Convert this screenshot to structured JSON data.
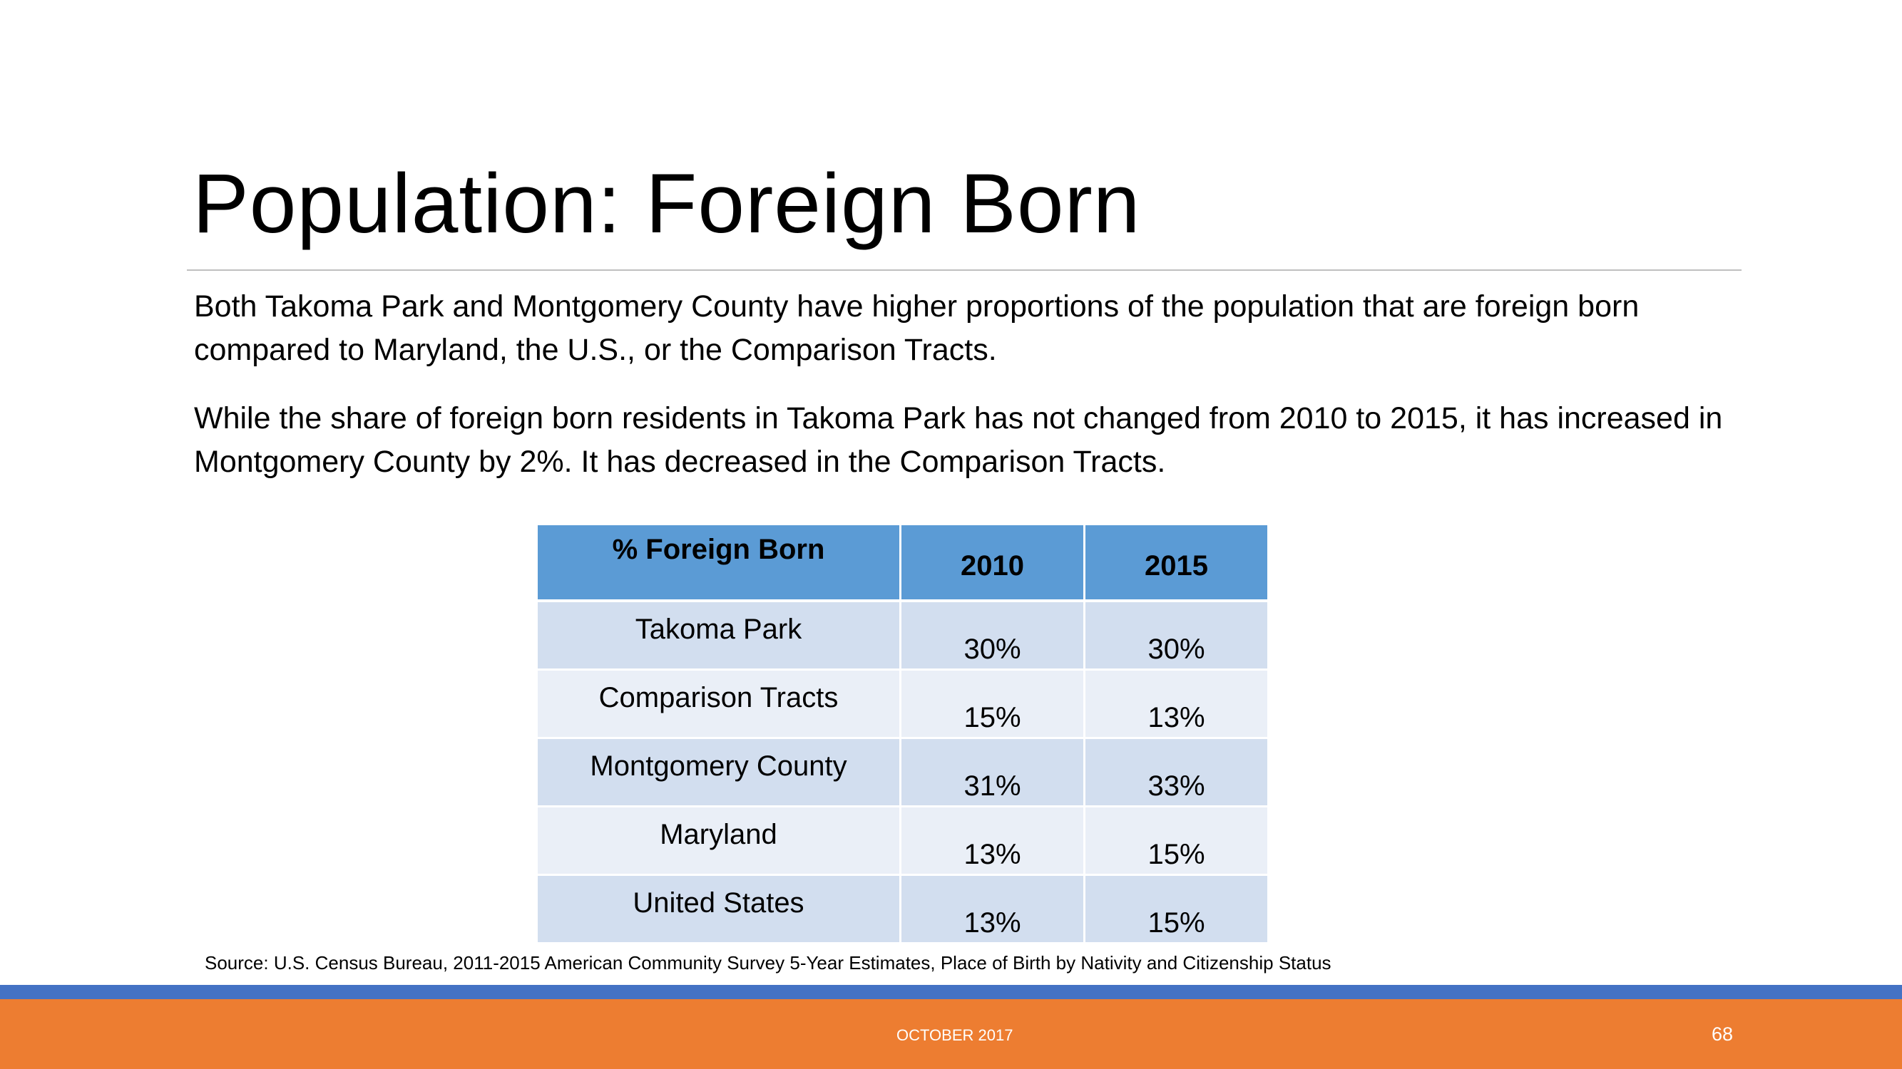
{
  "slide": {
    "title": "Population: Foreign Born",
    "paragraphs": [
      "Both Takoma Park and Montgomery County have higher proportions of the population that are foreign born compared to Maryland, the U.S., or the Comparison Tracts.",
      "While the share of foreign born residents in Takoma Park has not changed from 2010 to 2015, it has increased in Montgomery County by 2%. It has decreased in the Comparison Tracts."
    ],
    "source": "Source: U.S. Census Bureau, 2011-2015 American Community Survey 5-Year Estimates, Place of Birth by Nativity and Citizenship Status"
  },
  "table": {
    "headers": [
      "% Foreign Born",
      "2010",
      "2015"
    ],
    "rows": [
      {
        "label": "Takoma Park",
        "y2010": "30%",
        "y2015": "30%"
      },
      {
        "label": "Comparison Tracts",
        "y2010": "15%",
        "y2015": "13%"
      },
      {
        "label": "Montgomery County",
        "y2010": "31%",
        "y2015": "33%"
      },
      {
        "label": "Maryland",
        "y2010": "13%",
        "y2015": "15%"
      },
      {
        "label": "United States",
        "y2010": "13%",
        "y2015": "15%"
      }
    ]
  },
  "footer": {
    "date": "OCTOBER 2017",
    "page_number": "68"
  },
  "colors": {
    "header_fill": "#5b9bd5",
    "row_fill_dark": "#d2deef",
    "row_fill_light": "#eaeff7",
    "band_blue": "#4472c4",
    "band_orange": "#ed7d31"
  }
}
